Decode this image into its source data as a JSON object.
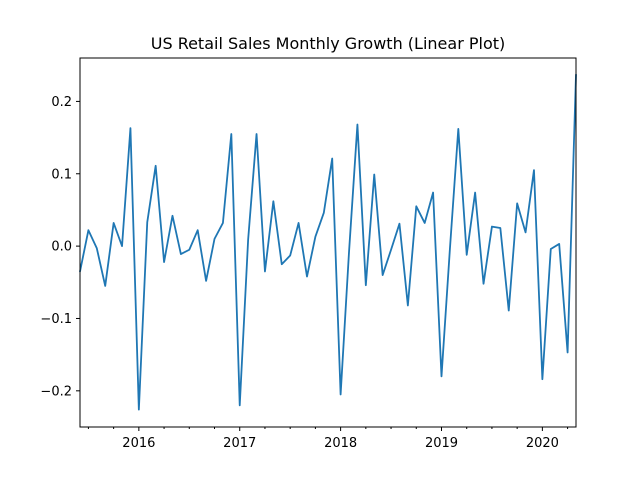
{
  "chart_data": {
    "type": "line",
    "title": "US Retail Sales Monthly Growth (Linear Plot)",
    "xlabel": "",
    "ylabel": "",
    "x": [
      "2015-06",
      "2015-07",
      "2015-08",
      "2015-09",
      "2015-10",
      "2015-11",
      "2015-12",
      "2016-01",
      "2016-02",
      "2016-03",
      "2016-04",
      "2016-05",
      "2016-06",
      "2016-07",
      "2016-08",
      "2016-09",
      "2016-10",
      "2016-11",
      "2016-12",
      "2017-01",
      "2017-02",
      "2017-03",
      "2017-04",
      "2017-05",
      "2017-06",
      "2017-07",
      "2017-08",
      "2017-09",
      "2017-10",
      "2017-11",
      "2017-12",
      "2018-01",
      "2018-02",
      "2018-03",
      "2018-04",
      "2018-05",
      "2018-06",
      "2018-07",
      "2018-08",
      "2018-09",
      "2018-10",
      "2018-11",
      "2018-12",
      "2019-01",
      "2019-02",
      "2019-03",
      "2019-04",
      "2019-05",
      "2019-06",
      "2019-07",
      "2019-08",
      "2019-09",
      "2019-10",
      "2019-11",
      "2019-12",
      "2020-01",
      "2020-02",
      "2020-03",
      "2020-04",
      "2020-05"
    ],
    "series": [
      {
        "name": "",
        "color": "#1f77b4",
        "values": [
          -0.035,
          0.022,
          -0.003,
          -0.055,
          0.032,
          0.0,
          0.163,
          -0.226,
          0.033,
          0.111,
          -0.022,
          0.042,
          -0.011,
          -0.005,
          0.022,
          -0.048,
          0.01,
          0.032,
          0.155,
          -0.22,
          0.009,
          0.155,
          -0.035,
          0.062,
          -0.025,
          -0.013,
          0.032,
          -0.042,
          0.013,
          0.046,
          0.121,
          -0.205,
          -0.008,
          0.168,
          -0.054,
          0.099,
          -0.04,
          -0.005,
          0.031,
          -0.082,
          0.055,
          0.032,
          0.074,
          -0.18,
          -0.004,
          0.162,
          -0.012,
          0.074,
          -0.052,
          0.027,
          0.025,
          -0.089,
          0.059,
          0.019,
          0.105,
          -0.184,
          -0.004,
          0.003,
          -0.147,
          0.237
        ]
      }
    ],
    "xlim": [
      "2015-06",
      "2020-05"
    ],
    "ylim": [
      -0.25,
      0.26
    ],
    "y_ticks": [
      -0.2,
      -0.1,
      0.0,
      0.1,
      0.2
    ],
    "y_tick_labels": [
      "−0.2",
      "−0.1",
      "0.0",
      "0.1",
      "0.2"
    ],
    "x_ticks": [
      "2016-01",
      "2017-01",
      "2018-01",
      "2019-01",
      "2020-01"
    ],
    "x_tick_labels": [
      "2016",
      "2017",
      "2018",
      "2019",
      "2020"
    ],
    "grid": false,
    "legend": "none"
  }
}
